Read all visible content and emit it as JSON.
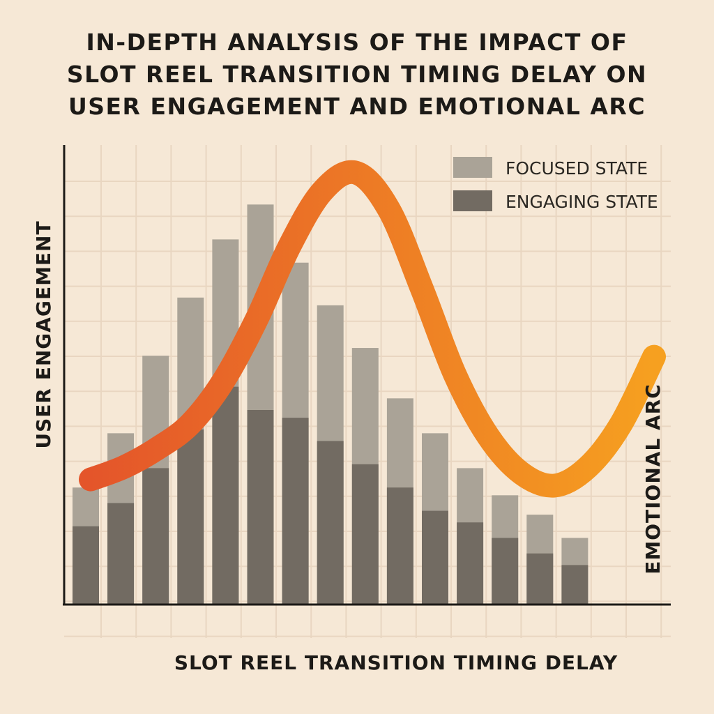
{
  "title_lines": [
    "IN-DEPTH ANALYSIS OF THE IMPACT OF",
    "SLOT REEL TRANSITION TIMING DELAY ON",
    "USER ENGAGEMENT AND EMOTIONAL ARC"
  ],
  "colors": {
    "background": "#f6e8d6",
    "grid": "#e9d6c1",
    "axis": "#1c1a17",
    "focused": "#aaa397",
    "engaging": "#726b62",
    "arc_start": "#e4552a",
    "arc_end": "#f6a020"
  },
  "chart_data": {
    "type": "bar",
    "xlabel": "SLOT REEL TRANSITION TIMING DELAY",
    "ylabel": "USER ENGAGEMENT",
    "y2label": "EMOTIONAL ARC",
    "legend_position": "top-right",
    "grid": true,
    "ylim": [
      0,
      100
    ],
    "series": [
      {
        "name": "FOCUSED STATE",
        "values": [
          30,
          44,
          64,
          79,
          94,
          103,
          88,
          77,
          66,
          53,
          44,
          35,
          28,
          23,
          17
        ]
      },
      {
        "name": "ENGAGING STATE",
        "values": [
          20,
          26,
          35,
          45,
          56,
          50,
          48,
          42,
          36,
          30,
          24,
          21,
          17,
          13,
          10
        ]
      }
    ],
    "line": {
      "name": "EMOTIONAL ARC",
      "values": [
        48,
        50,
        53,
        57,
        64,
        74,
        86,
        95,
        98,
        92,
        79,
        65,
        55,
        49,
        47,
        50,
        57,
        68
      ],
      "ylim": [
        0,
        100
      ]
    }
  }
}
